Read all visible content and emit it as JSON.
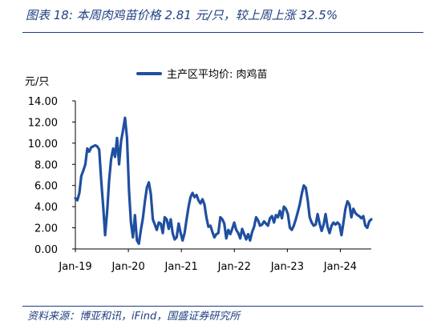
{
  "header": {
    "title": "图表 18:  本周肉鸡苗价格 2.81 元/只，较上周上涨 32.5%"
  },
  "footer": {
    "source": "资料来源：博亚和讯，iFind，国盛证券研究所"
  },
  "chart_data": {
    "type": "line",
    "ylabel": "元/只",
    "ylim": [
      0,
      14
    ],
    "yticks": [
      "0.00",
      "2.00",
      "4.00",
      "6.00",
      "8.00",
      "10.00",
      "12.00",
      "14.00"
    ],
    "xticks": [
      "Jan-19",
      "Jan-20",
      "Jan-21",
      "Jan-22",
      "Jan-23",
      "Jan-24"
    ],
    "x_start": "2019-01",
    "x_end": "2024-08",
    "legend_position": "top-center",
    "series": [
      {
        "name": "主产区平均价: 肉鸡苗",
        "color": "#1f4fa0",
        "values": [
          4.8,
          4.6,
          5.3,
          6.9,
          7.4,
          8.0,
          9.5,
          9.2,
          9.6,
          9.7,
          9.8,
          9.7,
          9.4,
          6.5,
          4.0,
          1.3,
          3.5,
          6.5,
          8.5,
          9.5,
          8.7,
          10.5,
          8.0,
          10.2,
          11.2,
          12.4,
          10.5,
          5.5,
          2.5,
          1.1,
          3.2,
          0.8,
          0.5,
          1.8,
          2.9,
          4.5,
          5.8,
          6.3,
          5.2,
          2.8,
          2.3,
          1.8,
          2.5,
          2.4,
          1.5,
          3.0,
          2.8,
          1.9,
          2.8,
          1.5,
          0.9,
          1.1,
          2.4,
          1.5,
          0.8,
          1.5,
          2.8,
          4.0,
          4.9,
          5.3,
          4.9,
          5.1,
          4.6,
          4.3,
          4.7,
          4.2,
          3.0,
          2.1,
          2.2,
          1.6,
          1.1,
          1.4,
          1.5,
          3.0,
          2.8,
          2.4,
          1.0,
          1.8,
          1.4,
          1.9,
          2.5,
          1.8,
          1.5,
          1.0,
          1.9,
          1.4,
          0.9,
          1.4,
          0.8,
          1.6,
          2.1,
          3.0,
          2.7,
          2.2,
          2.3,
          2.6,
          2.4,
          2.2,
          2.9,
          3.1,
          2.5,
          3.2,
          3.0,
          3.6,
          2.9,
          4.0,
          3.8,
          3.3,
          2.0,
          1.8,
          2.2,
          2.8,
          3.5,
          4.2,
          5.2,
          6.0,
          5.8,
          4.6,
          3.0,
          2.5,
          2.2,
          2.3,
          3.3,
          2.4,
          1.7,
          2.3,
          3.3,
          2.1,
          1.5,
          2.2,
          2.5,
          2.3,
          2.5,
          2.3,
          1.3,
          2.5,
          3.8,
          4.5,
          4.2,
          3.0,
          3.8,
          3.4,
          3.2,
          3.1,
          2.9,
          3.1,
          2.2,
          2.0,
          2.6,
          2.8
        ]
      }
    ]
  }
}
